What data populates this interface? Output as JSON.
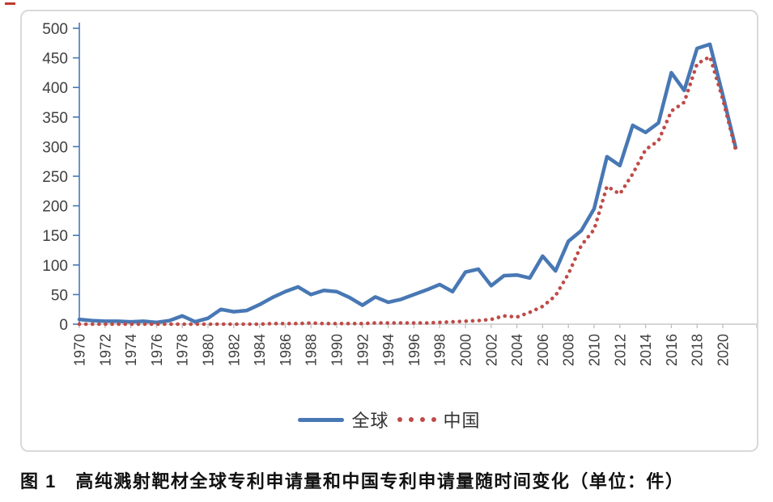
{
  "artifact": {
    "stray_mark_color": "#c0392b"
  },
  "chart": {
    "frame_border_color": "#d9d9d9",
    "y_axis_color": "#4878b4",
    "x_axis_color": "#bfbfbf",
    "tick_label_color": "#3f3f3f",
    "y_tick_labels": [
      "0",
      "50",
      "100",
      "150",
      "200",
      "250",
      "300",
      "350",
      "400",
      "450",
      "500"
    ],
    "x_tick_years": [
      1970,
      1972,
      1974,
      1976,
      1978,
      1980,
      1982,
      1984,
      1986,
      1988,
      1990,
      1992,
      1994,
      1996,
      1998,
      2000,
      2002,
      2004,
      2006,
      2008,
      2010,
      2012,
      2014,
      2016,
      2018,
      2020
    ]
  },
  "chart_data": {
    "type": "line",
    "title": "",
    "xlabel": "",
    "ylabel": "",
    "ylim": [
      0,
      500
    ],
    "y_tick_step": 50,
    "grid": false,
    "legend_position": "bottom",
    "categories": [
      1970,
      1971,
      1972,
      1973,
      1974,
      1975,
      1976,
      1977,
      1978,
      1979,
      1980,
      1981,
      1982,
      1983,
      1984,
      1985,
      1986,
      1987,
      1988,
      1989,
      1990,
      1991,
      1992,
      1993,
      1994,
      1995,
      1996,
      1997,
      1998,
      1999,
      2000,
      2001,
      2002,
      2003,
      2004,
      2005,
      2006,
      2007,
      2008,
      2009,
      2010,
      2011,
      2012,
      2013,
      2014,
      2015,
      2016,
      2017,
      2018,
      2019,
      2020,
      2021
    ],
    "series": [
      {
        "name": "全球",
        "style": "solid",
        "color": "#4878b4",
        "values": [
          8,
          6,
          5,
          5,
          4,
          5,
          3,
          6,
          14,
          4,
          10,
          25,
          21,
          23,
          33,
          45,
          55,
          63,
          50,
          57,
          55,
          45,
          32,
          46,
          37,
          42,
          50,
          58,
          67,
          55,
          88,
          93,
          65,
          82,
          83,
          78,
          115,
          90,
          140,
          158,
          195,
          283,
          268,
          336,
          324,
          340,
          425,
          395,
          466,
          473,
          387,
          298
        ]
      },
      {
        "name": "中国",
        "style": "dotted",
        "color": "#be4b48",
        "values": [
          0,
          0,
          0,
          0,
          0,
          0,
          0,
          0,
          0,
          0,
          0,
          0,
          0,
          0,
          0,
          1,
          1,
          1,
          2,
          1,
          1,
          1,
          1,
          2,
          2,
          2,
          2,
          2,
          3,
          4,
          5,
          6,
          8,
          14,
          12,
          20,
          30,
          48,
          85,
          133,
          160,
          233,
          220,
          254,
          295,
          310,
          360,
          375,
          440,
          452,
          380,
          295
        ]
      }
    ]
  },
  "legend": {
    "global_label": "全球",
    "china_label": "中国"
  },
  "caption": {
    "text": "图 1　高纯溅射靶材全球专利申请量和中国专利申请量随时间变化（单位：件）"
  }
}
